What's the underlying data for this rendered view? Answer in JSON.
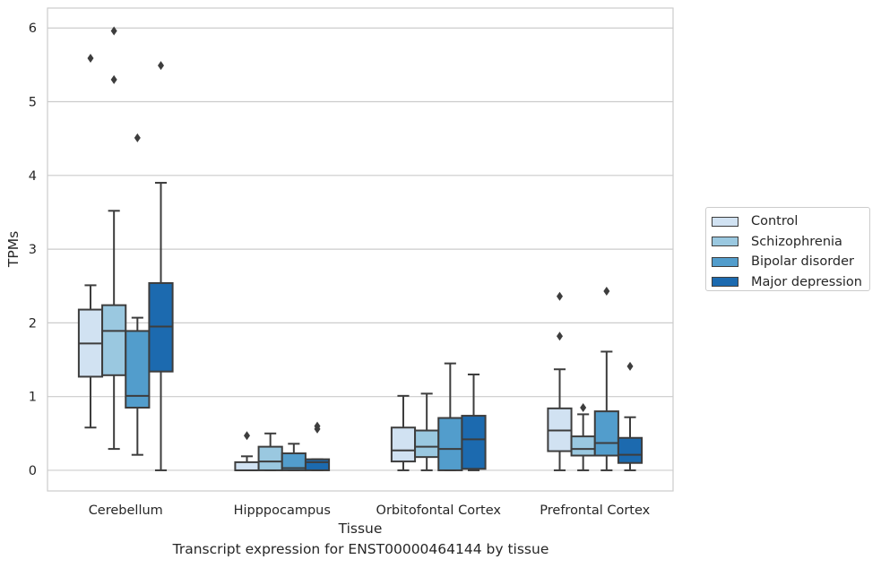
{
  "caption": "Transcript expression for ENST00000464144 by tissue",
  "legend": {
    "items": [
      {
        "label": "Control",
        "color": "#d1e2f2"
      },
      {
        "label": "Schizophrenia",
        "color": "#9ac8e0"
      },
      {
        "label": "Bipolar disorder",
        "color": "#529dcc"
      },
      {
        "label": "Major depression",
        "color": "#1c6aaf"
      }
    ]
  },
  "chart_data": {
    "type": "box",
    "xlabel": "Tissue",
    "ylabel": "TPMs",
    "ylim": [
      -0.28,
      6.27
    ],
    "yticks": [
      0,
      1,
      2,
      3,
      4,
      5,
      6
    ],
    "grid": "horizontal",
    "legend_position": "right",
    "categories": [
      "Cerebellum",
      "Hipppocampus",
      "Orbitofontal Cortex",
      "Prefrontal Cortex"
    ],
    "series": [
      {
        "name": "Control",
        "color": "#d1e2f2",
        "boxes": [
          {
            "whisker_low": 0.58,
            "q1": 1.27,
            "median": 1.72,
            "q3": 2.18,
            "whisker_high": 2.51,
            "outliers": [
              5.59
            ]
          },
          {
            "whisker_low": 0.0,
            "q1": 0.0,
            "median": 0.0,
            "q3": 0.11,
            "whisker_high": 0.19,
            "outliers": [
              0.47
            ]
          },
          {
            "whisker_low": 0.0,
            "q1": 0.12,
            "median": 0.27,
            "q3": 0.58,
            "whisker_high": 1.01,
            "outliers": []
          },
          {
            "whisker_low": 0.0,
            "q1": 0.26,
            "median": 0.54,
            "q3": 0.84,
            "whisker_high": 1.37,
            "outliers": [
              1.82,
              2.36
            ]
          }
        ]
      },
      {
        "name": "Schizophrenia",
        "color": "#9ac8e0",
        "boxes": [
          {
            "whisker_low": 0.29,
            "q1": 1.29,
            "median": 1.89,
            "q3": 2.24,
            "whisker_high": 3.52,
            "outliers": [
              5.3,
              5.96
            ]
          },
          {
            "whisker_low": 0.0,
            "q1": 0.0,
            "median": 0.12,
            "q3": 0.32,
            "whisker_high": 0.5,
            "outliers": []
          },
          {
            "whisker_low": 0.0,
            "q1": 0.18,
            "median": 0.32,
            "q3": 0.54,
            "whisker_high": 1.04,
            "outliers": []
          },
          {
            "whisker_low": 0.0,
            "q1": 0.2,
            "median": 0.29,
            "q3": 0.46,
            "whisker_high": 0.76,
            "outliers": [
              0.85
            ]
          }
        ]
      },
      {
        "name": "Bipolar disorder",
        "color": "#529dcc",
        "boxes": [
          {
            "whisker_low": 0.21,
            "q1": 0.85,
            "median": 1.01,
            "q3": 1.89,
            "whisker_high": 2.07,
            "outliers": [
              4.51
            ]
          },
          {
            "whisker_low": 0.0,
            "q1": 0.0,
            "median": 0.03,
            "q3": 0.23,
            "whisker_high": 0.36,
            "outliers": []
          },
          {
            "whisker_low": 0.0,
            "q1": 0.0,
            "median": 0.29,
            "q3": 0.71,
            "whisker_high": 1.45,
            "outliers": []
          },
          {
            "whisker_low": 0.0,
            "q1": 0.2,
            "median": 0.37,
            "q3": 0.8,
            "whisker_high": 1.61,
            "outliers": [
              2.43
            ]
          }
        ]
      },
      {
        "name": "Major depression",
        "color": "#1c6aaf",
        "boxes": [
          {
            "whisker_low": 0.0,
            "q1": 1.34,
            "median": 1.95,
            "q3": 2.54,
            "whisker_high": 3.9,
            "outliers": [
              5.49
            ]
          },
          {
            "whisker_low": 0.0,
            "q1": 0.0,
            "median": 0.11,
            "q3": 0.15,
            "whisker_high": 0.15,
            "outliers": [
              0.56,
              0.6
            ]
          },
          {
            "whisker_low": 0.0,
            "q1": 0.02,
            "median": 0.42,
            "q3": 0.74,
            "whisker_high": 1.3,
            "outliers": []
          },
          {
            "whisker_low": 0.0,
            "q1": 0.1,
            "median": 0.21,
            "q3": 0.44,
            "whisker_high": 0.72,
            "outliers": [
              1.41
            ]
          }
        ]
      }
    ]
  }
}
